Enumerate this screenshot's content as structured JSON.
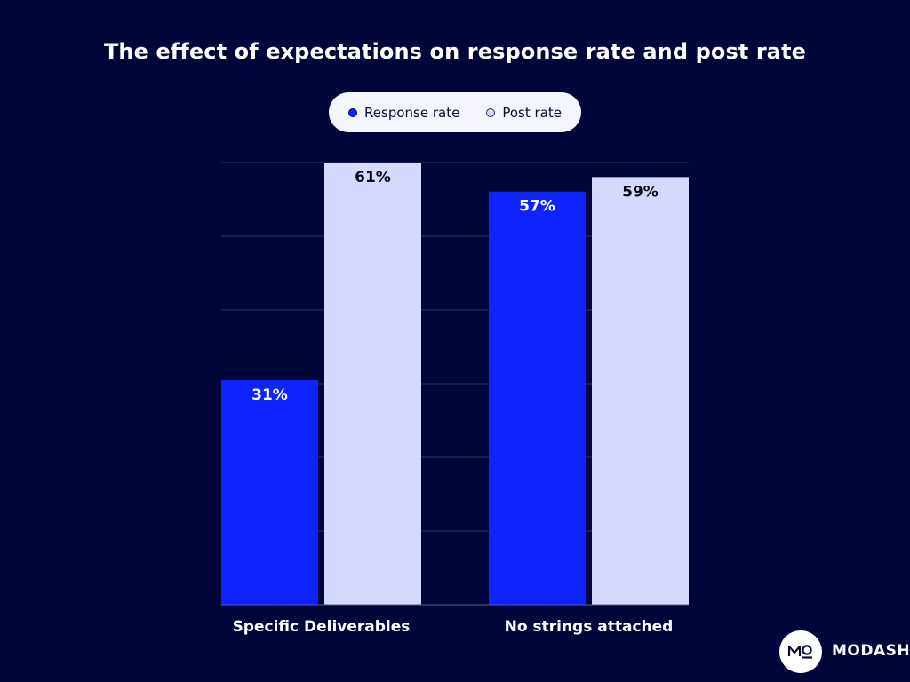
{
  "colors": {
    "background": "#00053a",
    "response": "#0d23ff",
    "post": "#d6d9ff",
    "grid": "#2e3268",
    "axis_text": "#ffffff"
  },
  "legend": {
    "items": [
      {
        "label": "Response rate",
        "color": "#0d23ff"
      },
      {
        "label": "Post rate",
        "color": "#d6d9ff"
      }
    ]
  },
  "brand": {
    "name": "MODASH",
    "logo_icon": "modash-logo-icon"
  },
  "chart_data": {
    "type": "bar",
    "title": "The effect of expectations on response rate and post rate",
    "xlabel": "",
    "ylabel": "",
    "categories": [
      "Specific Deliverables",
      "No strings attached"
    ],
    "series": [
      {
        "name": "Response rate",
        "values": [
          31,
          57
        ],
        "labels": [
          "31%",
          "57%"
        ]
      },
      {
        "name": "Post rate",
        "values": [
          61,
          59
        ],
        "labels": [
          "61%",
          "59%"
        ]
      }
    ],
    "ylim": [
      0,
      61
    ],
    "grid": true,
    "legend_position": "top-center"
  }
}
